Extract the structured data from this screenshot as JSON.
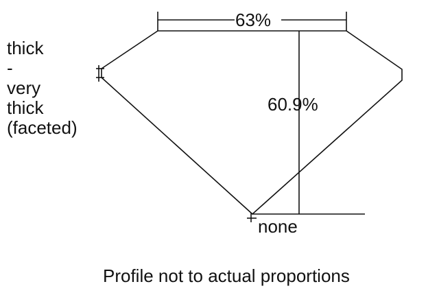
{
  "girdle_label": [
    "thick",
    "-",
    "very",
    "thick",
    "(faceted)"
  ],
  "table_percent": "63%",
  "depth_percent": "60.9%",
  "culet_label": "none",
  "caption": "Profile not to actual proportions"
}
